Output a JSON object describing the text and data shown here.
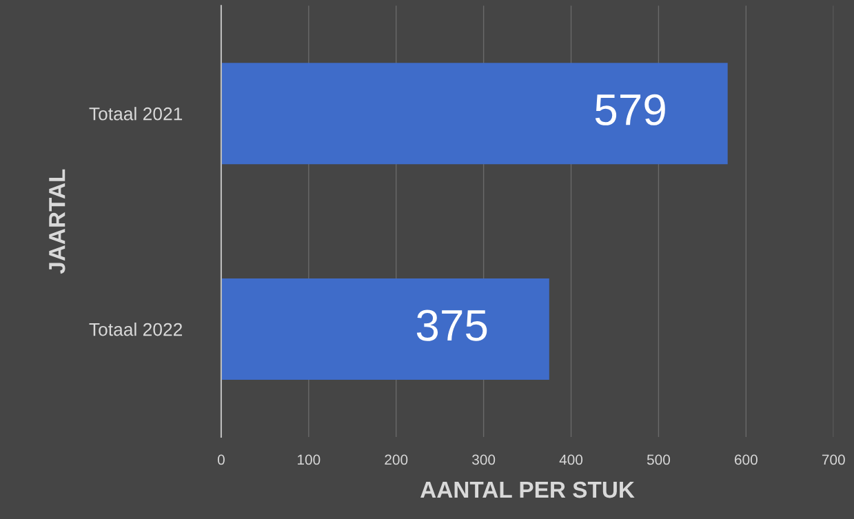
{
  "chart_data": {
    "type": "bar",
    "orientation": "horizontal",
    "categories": [
      "Totaal 2021",
      "Totaal 2022"
    ],
    "values": [
      579,
      375
    ],
    "color": "#3f6cc9",
    "xlim": [
      0,
      700
    ],
    "xticks": [
      0,
      100,
      200,
      300,
      400,
      500,
      600,
      700
    ],
    "xlabel": "AANTAL PER STUK",
    "ylabel": "JAARTAL",
    "grid": "x",
    "data_labels": true
  }
}
